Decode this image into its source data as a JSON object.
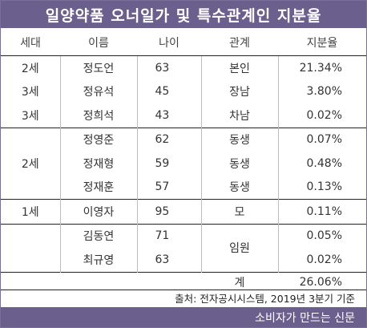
{
  "title": "일양약품 오너일가 및 특수관계인 지분율",
  "headers": [
    "세대",
    "이름",
    "나이",
    "관계",
    "지분율"
  ],
  "rows": [
    {
      "gen": "2세",
      "name": "정도언",
      "age": "63",
      "rel": "본인",
      "pct": "21.34%"
    },
    {
      "gen": "3세",
      "name": "정유석",
      "age": "45",
      "rel": "장남",
      "pct": "3.80%"
    },
    {
      "gen": "3세",
      "name": "정희석",
      "age": "43",
      "rel": "차남",
      "pct": "0.02%"
    },
    {
      "gen": "2세",
      "name": "정영준",
      "age": "62",
      "rel": "동생",
      "pct": "0.07%"
    },
    {
      "gen": "",
      "name": "정재형",
      "age": "59",
      "rel": "동생",
      "pct": "0.48%"
    },
    {
      "gen": "",
      "name": "정재훈",
      "age": "57",
      "rel": "동생",
      "pct": "0.13%"
    },
    {
      "gen": "1세",
      "name": "이영자",
      "age": "95",
      "rel": "모",
      "pct": "0.11%"
    },
    {
      "gen": "",
      "name": "김동연",
      "age": "71",
      "rel": "임원",
      "pct": "0.05%"
    },
    {
      "gen": "",
      "name": "최규영",
      "age": "63",
      "rel": "",
      "pct": "0.02%"
    }
  ],
  "total": {
    "label": "계",
    "pct": "26.06%"
  },
  "source": "출처: 전자공시시스템, 2019년 3분기 기준",
  "footer": "소비자가 만드는 신문",
  "colors": {
    "accent": "#6b5f8e"
  }
}
